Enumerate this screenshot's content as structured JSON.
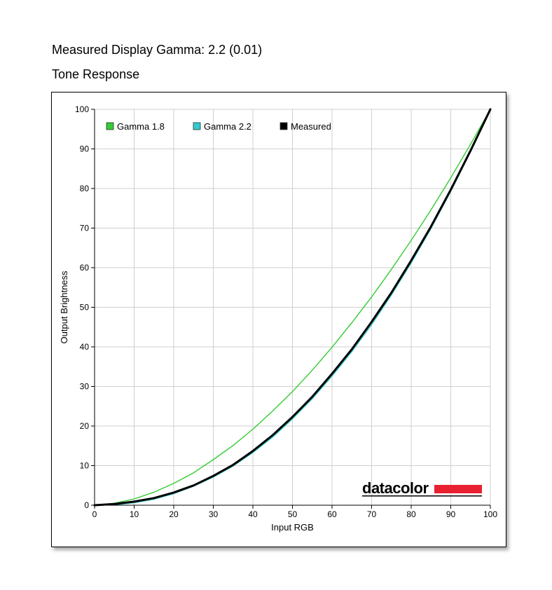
{
  "header": {
    "measured_gamma": "Measured Display Gamma: 2.2 (0.01)",
    "section_title": "Tone Response"
  },
  "logo": {
    "text": "datacolor",
    "bar_color": "#e8202f"
  },
  "chart_data": {
    "type": "line",
    "title": "Tone Response",
    "xlabel": "Input RGB",
    "ylabel": "Output Brightness",
    "xlim": [
      0,
      100
    ],
    "ylim": [
      0,
      100
    ],
    "xticks": [
      0,
      10,
      20,
      30,
      40,
      50,
      60,
      70,
      80,
      90,
      100
    ],
    "yticks": [
      0,
      10,
      20,
      30,
      40,
      50,
      60,
      70,
      80,
      90,
      100
    ],
    "grid": true,
    "legend_position": "top-left",
    "x": [
      0,
      5,
      10,
      15,
      20,
      25,
      30,
      35,
      40,
      45,
      50,
      55,
      60,
      65,
      70,
      75,
      80,
      85,
      90,
      95,
      100
    ],
    "series": [
      {
        "name": "Gamma 1.8",
        "color": "#33cc33",
        "values": [
          0,
          0.5,
          1.6,
          3.3,
          5.5,
          8.2,
          11.5,
          15.1,
          19.2,
          23.8,
          28.7,
          34.1,
          39.9,
          46.1,
          52.6,
          59.6,
          66.9,
          74.6,
          82.7,
          91.2,
          100
        ]
      },
      {
        "name": "Gamma 2.2",
        "color": "#33cccc",
        "values": [
          0,
          0.1,
          0.6,
          1.5,
          2.9,
          4.8,
          7.1,
          9.9,
          13.3,
          17.2,
          21.8,
          26.9,
          32.6,
          38.8,
          45.6,
          53.1,
          61.2,
          69.9,
          79.3,
          89.3,
          100
        ]
      },
      {
        "name": "Measured",
        "color": "#000000",
        "values": [
          0,
          0.3,
          0.9,
          1.8,
          3.2,
          5.0,
          7.4,
          10.2,
          13.7,
          17.7,
          22.3,
          27.4,
          33.2,
          39.4,
          46.3,
          53.7,
          61.8,
          70.4,
          79.7,
          89.6,
          100
        ]
      }
    ]
  }
}
